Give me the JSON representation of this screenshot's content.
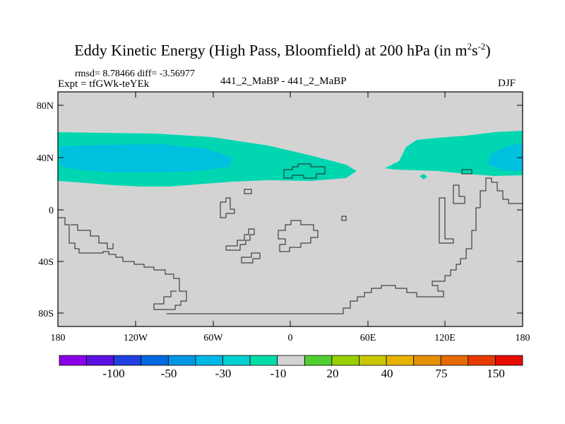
{
  "map": {
    "title": "Eddy Kinetic Energy (High Pass, Bloomfield) at 200 hPa (in m",
    "title_sup1": "2",
    "title_mid": "s",
    "title_sup2": "-2",
    "title_end": ")",
    "stats": "rmsd= 8.78466 diff= -3.56977",
    "experiment": "Expt = tfGWk-teYEk",
    "cases": "441_2_MaBP - 441_2_MaBP",
    "season": "DJF",
    "lat_ticks": [
      "80N",
      "40N",
      "0",
      "40S",
      "80S"
    ],
    "lon_ticks": [
      "180",
      "120W",
      "60W",
      "0",
      "60E",
      "120E",
      "180"
    ],
    "background_color": "#d3d3d3",
    "field_colors": {
      "minus10": "#00d6b0",
      "minus30": "#00c0e0"
    }
  },
  "colorbar": {
    "labels": [
      "-100",
      "-50",
      "-30",
      "-10",
      "20",
      "40",
      "75",
      "150"
    ],
    "colors": [
      "#8a00e6",
      "#5a10e0",
      "#2040e0",
      "#0068e0",
      "#0098e6",
      "#00b8e6",
      "#00d0d0",
      "#00dca8",
      "#d3d3d3",
      "#50d030",
      "#98d000",
      "#c8c800",
      "#e6b400",
      "#e69000",
      "#e66a00",
      "#e63a00",
      "#e60a00"
    ]
  }
}
